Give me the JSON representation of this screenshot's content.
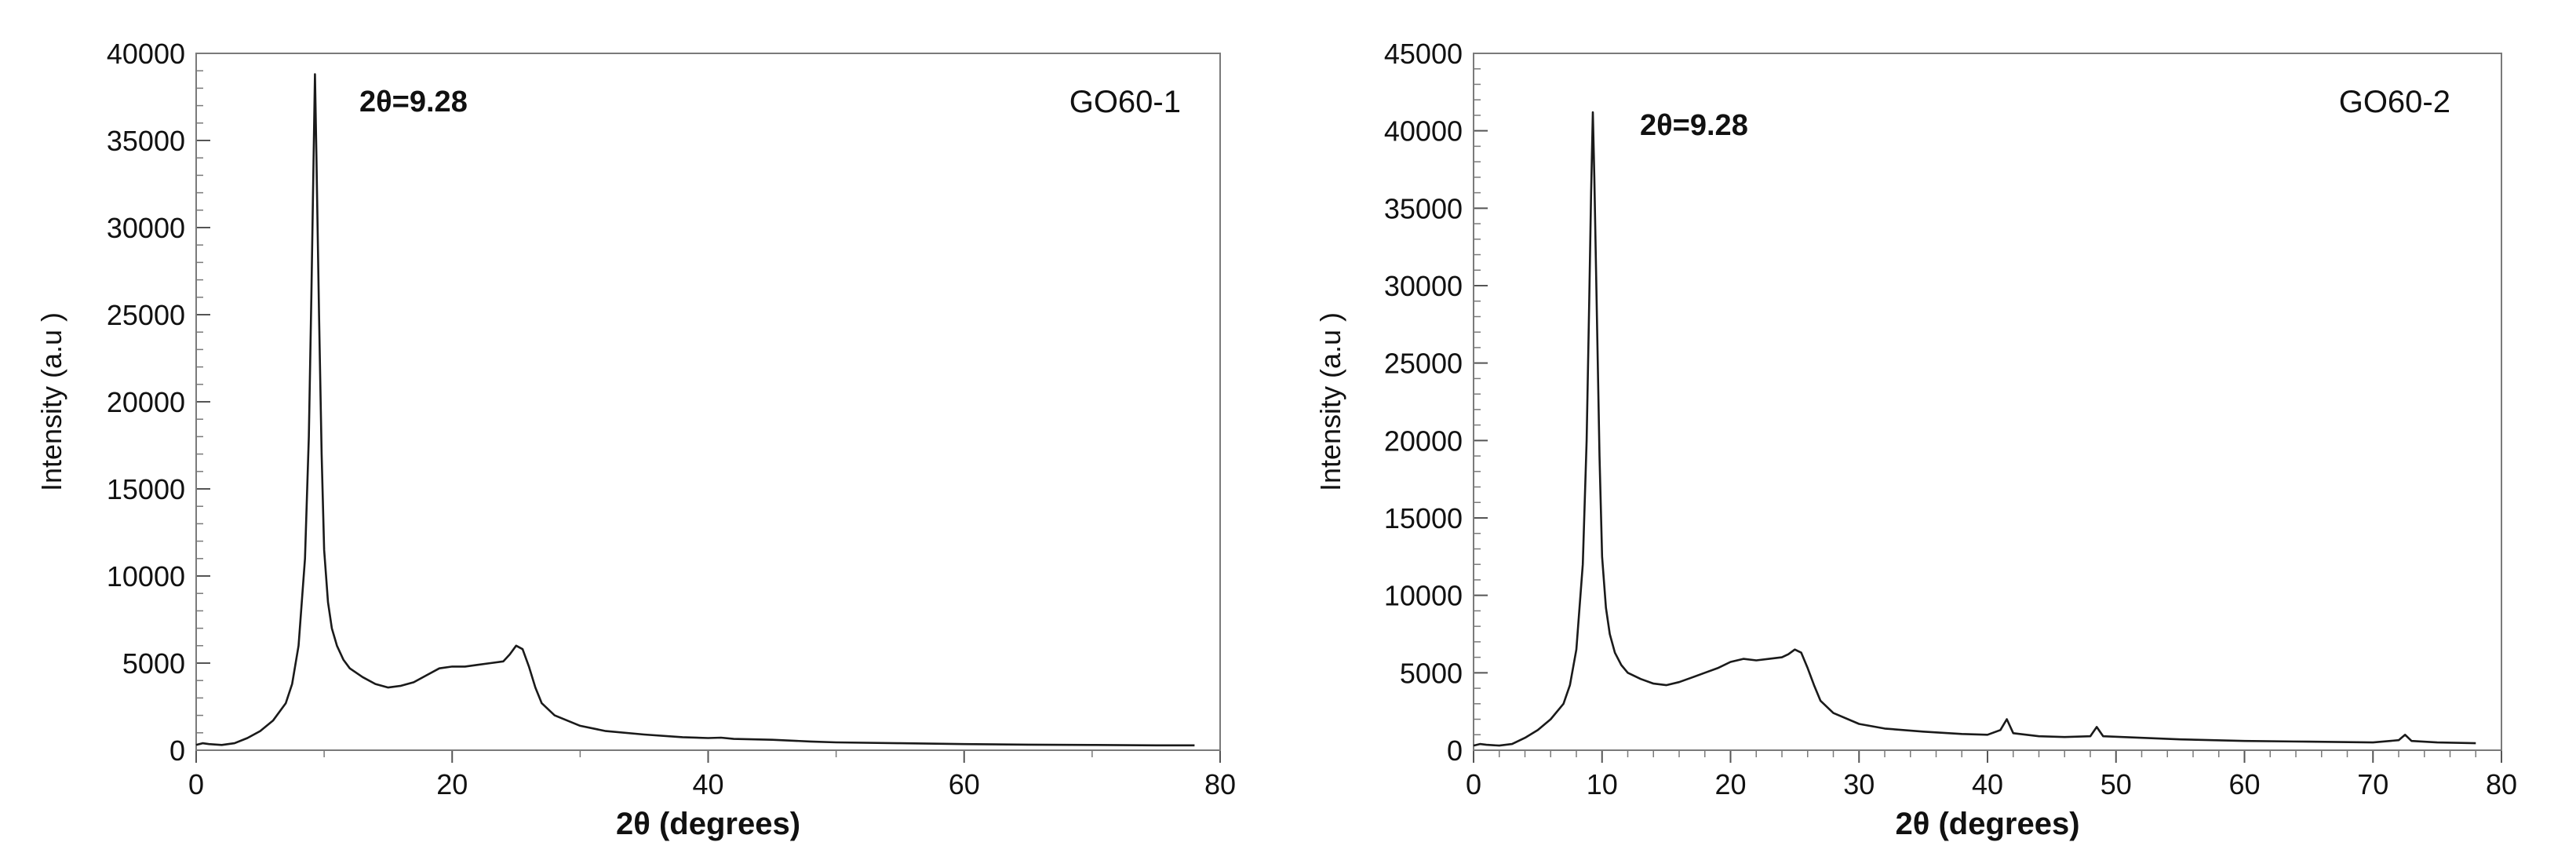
{
  "chart_data": [
    {
      "type": "line",
      "title": "",
      "xlabel": "2θ (degrees)",
      "ylabel": "Intensity (a.u )",
      "xlim": [
        0,
        80
      ],
      "ylim": [
        0,
        40000
      ],
      "xticks": [
        0,
        20,
        40,
        60,
        80
      ],
      "yticks": [
        0,
        5000,
        10000,
        15000,
        20000,
        25000,
        30000,
        35000,
        40000
      ],
      "grid": false,
      "annotations": [
        "2θ=9.28",
        "GO60-1"
      ],
      "line_color": "#1a1a1a",
      "series": [
        {
          "x": [
            0,
            0.5,
            1,
            2,
            3,
            4,
            5,
            6,
            7,
            7.5,
            8,
            8.5,
            8.8,
            9,
            9.15,
            9.28,
            9.4,
            9.6,
            9.8,
            10,
            10.3,
            10.6,
            11,
            11.5,
            12,
            13,
            14,
            15,
            16,
            17,
            18,
            19,
            20,
            21,
            22,
            23,
            24,
            24.5,
            25,
            25.5,
            26,
            26.5,
            27,
            28,
            30,
            32,
            35,
            38,
            40,
            41,
            42,
            45,
            48,
            50,
            55,
            60,
            65,
            70,
            75,
            78
          ],
          "y": [
            300,
            400,
            350,
            300,
            400,
            700,
            1100,
            1700,
            2700,
            3800,
            6000,
            11000,
            18000,
            26000,
            33000,
            38800,
            34000,
            25000,
            17000,
            11500,
            8500,
            7000,
            6000,
            5200,
            4700,
            4200,
            3800,
            3600,
            3700,
            3900,
            4300,
            4700,
            4800,
            4800,
            4900,
            5000,
            5100,
            5500,
            6000,
            5800,
            4800,
            3600,
            2700,
            2000,
            1400,
            1100,
            900,
            750,
            700,
            720,
            650,
            600,
            500,
            450,
            400,
            350,
            320,
            300,
            280,
            280
          ]
        }
      ]
    },
    {
      "type": "line",
      "title": "",
      "xlabel": "2θ (degrees)",
      "ylabel": "Intensity (a.u )",
      "xlim": [
        0,
        80
      ],
      "ylim": [
        0,
        45000
      ],
      "xticks": [
        0,
        10,
        20,
        30,
        40,
        50,
        60,
        70,
        80
      ],
      "yticks": [
        0,
        5000,
        10000,
        15000,
        20000,
        25000,
        30000,
        35000,
        40000,
        45000
      ],
      "grid": false,
      "annotations": [
        "2θ=9.28",
        "GO60-2"
      ],
      "line_color": "#1a1a1a",
      "series": [
        {
          "x": [
            0,
            0.5,
            1,
            2,
            3,
            4,
            5,
            6,
            7,
            7.5,
            8,
            8.5,
            8.8,
            9,
            9.15,
            9.28,
            9.4,
            9.6,
            9.8,
            10,
            10.3,
            10.6,
            11,
            11.5,
            12,
            13,
            14,
            15,
            16,
            17,
            18,
            19,
            20,
            21,
            22,
            23,
            24,
            24.5,
            25,
            25.5,
            26,
            26.5,
            27,
            28,
            30,
            32,
            35,
            38,
            40,
            41,
            41.5,
            42,
            44,
            46,
            48,
            48.5,
            49,
            52,
            55,
            60,
            65,
            70,
            72,
            72.5,
            73,
            75,
            78
          ],
          "y": [
            300,
            400,
            350,
            300,
            400,
            800,
            1300,
            2000,
            3000,
            4200,
            6500,
            12000,
            20000,
            29000,
            36000,
            41200,
            37000,
            28000,
            19000,
            12500,
            9200,
            7500,
            6300,
            5500,
            5000,
            4600,
            4300,
            4200,
            4400,
            4700,
            5000,
            5300,
            5700,
            5900,
            5800,
            5900,
            6000,
            6200,
            6500,
            6300,
            5300,
            4200,
            3200,
            2400,
            1700,
            1400,
            1200,
            1050,
            1000,
            1300,
            2000,
            1100,
            900,
            850,
            900,
            1500,
            900,
            800,
            700,
            600,
            550,
            500,
            650,
            1000,
            600,
            500,
            450
          ]
        }
      ]
    }
  ]
}
